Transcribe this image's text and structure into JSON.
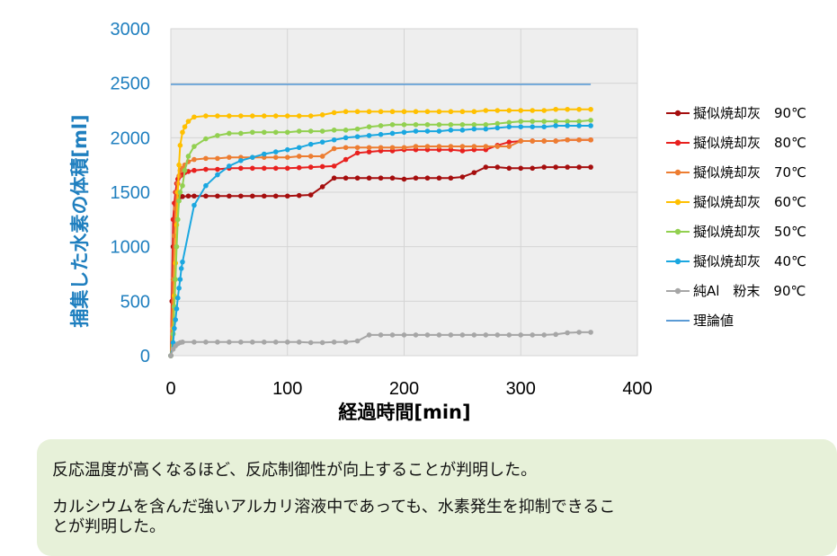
{
  "chart_data": {
    "type": "line",
    "xlabel": "経過時間[min]",
    "ylabel": "捕集した水素の体積[ml]",
    "xlim": [
      0,
      400
    ],
    "ylim": [
      0,
      3000
    ],
    "xticks": [
      "0",
      "100",
      "200",
      "300",
      "400"
    ],
    "yticks": [
      "0",
      "500",
      "1000",
      "1500",
      "2000",
      "2500",
      "3000"
    ],
    "grid": true,
    "legend_position": "right",
    "series": [
      {
        "name": "擬似焼却灰　90℃",
        "color": "#a50e0e",
        "marker": true,
        "x": [
          0,
          1,
          2,
          3,
          4,
          5,
          6,
          7,
          8,
          10,
          15,
          20,
          30,
          40,
          50,
          60,
          70,
          80,
          90,
          100,
          110,
          120,
          130,
          140,
          150,
          160,
          170,
          180,
          190,
          200,
          210,
          220,
          230,
          240,
          250,
          260,
          270,
          280,
          290,
          300,
          310,
          320,
          330,
          340,
          350,
          360
        ],
        "y": [
          0,
          500,
          1000,
          1250,
          1350,
          1420,
          1440,
          1450,
          1460,
          1460,
          1465,
          1465,
          1465,
          1465,
          1465,
          1465,
          1465,
          1465,
          1465,
          1465,
          1470,
          1475,
          1550,
          1630,
          1630,
          1630,
          1630,
          1630,
          1630,
          1620,
          1630,
          1630,
          1630,
          1630,
          1640,
          1680,
          1730,
          1730,
          1720,
          1720,
          1720,
          1730,
          1730,
          1730,
          1730,
          1730
        ]
      },
      {
        "name": "擬似焼却灰　80℃",
        "color": "#e8201e",
        "marker": true,
        "x": [
          0,
          2,
          3,
          4,
          5,
          6,
          7,
          8,
          10,
          12,
          15,
          20,
          30,
          40,
          50,
          60,
          70,
          80,
          90,
          100,
          110,
          120,
          130,
          140,
          150,
          160,
          170,
          180,
          190,
          200,
          210,
          220,
          230,
          240,
          250,
          260,
          270,
          280,
          290,
          300,
          310,
          320,
          330,
          340,
          350,
          360
        ],
        "y": [
          0,
          1250,
          1400,
          1500,
          1580,
          1620,
          1640,
          1650,
          1660,
          1680,
          1690,
          1700,
          1710,
          1710,
          1720,
          1720,
          1720,
          1720,
          1720,
          1720,
          1725,
          1730,
          1735,
          1740,
          1800,
          1860,
          1870,
          1880,
          1880,
          1890,
          1890,
          1890,
          1890,
          1890,
          1880,
          1890,
          1890,
          1930,
          1960,
          1970,
          1970,
          1970,
          1970,
          1980,
          1980,
          1980
        ]
      },
      {
        "name": "擬似焼却灰　70℃",
        "color": "#ed7d31",
        "marker": true,
        "x": [
          0,
          2,
          3,
          4,
          5,
          6,
          7,
          8,
          10,
          12,
          15,
          20,
          30,
          40,
          50,
          60,
          70,
          80,
          90,
          100,
          110,
          120,
          130,
          140,
          150,
          160,
          170,
          180,
          190,
          200,
          210,
          220,
          230,
          240,
          250,
          260,
          270,
          280,
          290,
          300,
          310,
          320,
          330,
          340,
          350,
          360
        ],
        "y": [
          0,
          700,
          1100,
          1350,
          1500,
          1580,
          1650,
          1700,
          1720,
          1750,
          1780,
          1800,
          1810,
          1810,
          1820,
          1820,
          1820,
          1820,
          1820,
          1820,
          1830,
          1830,
          1830,
          1900,
          1910,
          1910,
          1910,
          1910,
          1910,
          1910,
          1920,
          1920,
          1920,
          1920,
          1920,
          1920,
          1920,
          1920,
          1920,
          1970,
          1970,
          1970,
          1970,
          1980,
          1980,
          1980
        ]
      },
      {
        "name": "擬似焼却灰　60℃",
        "color": "#ffc000",
        "marker": true,
        "x": [
          0,
          2,
          3,
          4,
          5,
          6,
          7,
          8,
          10,
          12,
          15,
          20,
          30,
          40,
          50,
          60,
          70,
          80,
          90,
          100,
          110,
          120,
          130,
          140,
          150,
          160,
          170,
          180,
          190,
          200,
          210,
          220,
          230,
          240,
          250,
          260,
          270,
          280,
          290,
          300,
          310,
          320,
          330,
          340,
          350,
          360
        ],
        "y": [
          0,
          250,
          550,
          850,
          1200,
          1500,
          1750,
          1930,
          2050,
          2100,
          2150,
          2190,
          2200,
          2200,
          2200,
          2200,
          2200,
          2200,
          2200,
          2200,
          2200,
          2200,
          2210,
          2230,
          2240,
          2240,
          2240,
          2240,
          2240,
          2240,
          2240,
          2240,
          2240,
          2240,
          2240,
          2240,
          2250,
          2250,
          2250,
          2250,
          2250,
          2250,
          2260,
          2260,
          2260,
          2260
        ]
      },
      {
        "name": "擬似焼却灰　50℃",
        "color": "#92d050",
        "marker": true,
        "x": [
          0,
          2,
          3,
          4,
          5,
          6,
          7,
          8,
          10,
          12,
          15,
          20,
          30,
          40,
          50,
          60,
          70,
          80,
          90,
          100,
          110,
          120,
          130,
          140,
          150,
          160,
          170,
          180,
          190,
          200,
          210,
          220,
          230,
          240,
          250,
          260,
          270,
          280,
          290,
          300,
          310,
          320,
          330,
          340,
          350,
          360
        ],
        "y": [
          0,
          200,
          450,
          700,
          1000,
          1250,
          1420,
          1500,
          1560,
          1700,
          1830,
          1920,
          1990,
          2020,
          2040,
          2040,
          2050,
          2050,
          2050,
          2050,
          2060,
          2060,
          2060,
          2070,
          2070,
          2080,
          2100,
          2110,
          2120,
          2120,
          2120,
          2120,
          2120,
          2120,
          2120,
          2120,
          2120,
          2130,
          2140,
          2150,
          2150,
          2150,
          2150,
          2150,
          2150,
          2160
        ]
      },
      {
        "name": "擬似焼却灰　40℃",
        "color": "#1aa7e0",
        "marker": true,
        "x": [
          0,
          2,
          3,
          4,
          5,
          6,
          7,
          8,
          9,
          10,
          20,
          30,
          40,
          50,
          60,
          70,
          80,
          90,
          100,
          110,
          120,
          130,
          140,
          150,
          160,
          170,
          180,
          190,
          200,
          210,
          220,
          230,
          240,
          250,
          260,
          270,
          280,
          290,
          300,
          310,
          320,
          330,
          340,
          350,
          360
        ],
        "y": [
          0,
          120,
          250,
          330,
          430,
          530,
          620,
          700,
          800,
          860,
          1380,
          1560,
          1660,
          1740,
          1790,
          1820,
          1850,
          1870,
          1890,
          1910,
          1940,
          1960,
          1980,
          2000,
          2010,
          2020,
          2030,
          2040,
          2050,
          2060,
          2060,
          2060,
          2070,
          2070,
          2080,
          2080,
          2090,
          2100,
          2100,
          2100,
          2100,
          2110,
          2110,
          2110,
          2110
        ]
      },
      {
        "name": "純Al　粉末　90℃",
        "color": "#a6a6a6",
        "marker": true,
        "x": [
          0,
          2,
          4,
          6,
          8,
          10,
          20,
          30,
          40,
          50,
          60,
          70,
          80,
          90,
          100,
          110,
          120,
          130,
          140,
          150,
          160,
          170,
          180,
          190,
          200,
          210,
          220,
          230,
          240,
          250,
          260,
          270,
          280,
          290,
          300,
          310,
          320,
          330,
          340,
          350,
          360
        ],
        "y": [
          0,
          60,
          90,
          110,
          120,
          125,
          125,
          125,
          125,
          125,
          125,
          125,
          125,
          125,
          125,
          125,
          120,
          120,
          125,
          125,
          135,
          190,
          190,
          190,
          190,
          190,
          190,
          190,
          190,
          190,
          190,
          190,
          190,
          190,
          190,
          190,
          190,
          195,
          210,
          215,
          215
        ]
      },
      {
        "name": "理論値",
        "color": "#5b9bd5",
        "marker": false,
        "x": [
          0,
          360
        ],
        "y": [
          2490,
          2490
        ]
      }
    ]
  },
  "notes": [
    "反応温度が高くなるほど、反応制御性が向上することが判明した。",
    "カルシウムを含んだ強いアルカリ溶液中であっても、水素発生を抑制できるこ\nとが判明した。"
  ]
}
